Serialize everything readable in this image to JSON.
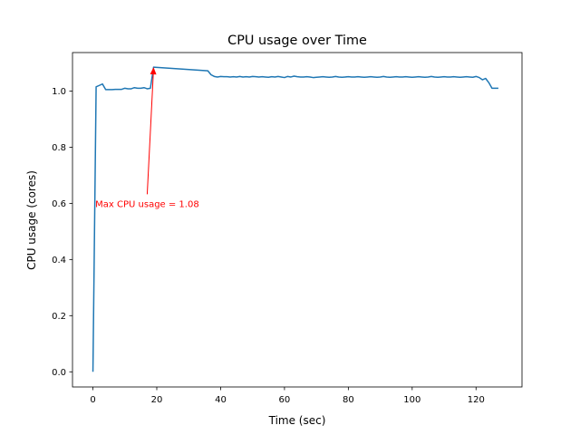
{
  "chart_data": {
    "type": "line",
    "title": "CPU usage over Time",
    "xlabel": "Time (sec)",
    "ylabel": "CPU usage (cores)",
    "xlim": [
      -6.4,
      134.4
    ],
    "ylim": [
      -0.054,
      1.137
    ],
    "xticks": [
      0,
      20,
      40,
      60,
      80,
      100,
      120
    ],
    "yticks": [
      0.0,
      0.2,
      0.4,
      0.6,
      0.8,
      1.0
    ],
    "xtick_labels": [
      "0",
      "20",
      "40",
      "60",
      "80",
      "100",
      "120"
    ],
    "ytick_labels": [
      "0.0",
      "0.2",
      "0.4",
      "0.6",
      "0.8",
      "1.0"
    ],
    "grid": false,
    "series": [
      {
        "color": "#1f77b4",
        "x": [
          0,
          1,
          2,
          3,
          4,
          5,
          6,
          7,
          8,
          9,
          10,
          11,
          12,
          13,
          14,
          15,
          16,
          17,
          18,
          19,
          36,
          37,
          38,
          39,
          40,
          41,
          42,
          43,
          44,
          45,
          46,
          47,
          48,
          49,
          50,
          51,
          52,
          53,
          54,
          55,
          56,
          57,
          58,
          59,
          60,
          61,
          62,
          63,
          64,
          65,
          66,
          67,
          68,
          69,
          70,
          71,
          72,
          73,
          74,
          75,
          76,
          77,
          78,
          79,
          80,
          81,
          82,
          83,
          84,
          85,
          86,
          87,
          88,
          89,
          90,
          91,
          92,
          93,
          94,
          95,
          96,
          97,
          98,
          99,
          100,
          101,
          102,
          103,
          104,
          105,
          106,
          107,
          108,
          109,
          110,
          111,
          112,
          113,
          114,
          115,
          116,
          117,
          118,
          119,
          120,
          121,
          122,
          123,
          124,
          125,
          126,
          127
        ],
        "values": [
          0.0,
          1.015,
          1.02,
          1.025,
          1.005,
          1.005,
          1.005,
          1.006,
          1.006,
          1.006,
          1.01,
          1.008,
          1.008,
          1.012,
          1.01,
          1.01,
          1.012,
          1.008,
          1.01,
          1.085,
          1.072,
          1.058,
          1.052,
          1.05,
          1.052,
          1.051,
          1.051,
          1.05,
          1.051,
          1.05,
          1.052,
          1.05,
          1.051,
          1.05,
          1.052,
          1.051,
          1.05,
          1.051,
          1.05,
          1.049,
          1.051,
          1.05,
          1.052,
          1.05,
          1.048,
          1.052,
          1.05,
          1.053,
          1.051,
          1.05,
          1.05,
          1.051,
          1.05,
          1.048,
          1.049,
          1.05,
          1.051,
          1.05,
          1.049,
          1.05,
          1.052,
          1.05,
          1.049,
          1.05,
          1.051,
          1.05,
          1.05,
          1.051,
          1.05,
          1.049,
          1.05,
          1.051,
          1.05,
          1.049,
          1.05,
          1.052,
          1.05,
          1.049,
          1.05,
          1.051,
          1.05,
          1.05,
          1.051,
          1.05,
          1.049,
          1.05,
          1.051,
          1.05,
          1.049,
          1.05,
          1.052,
          1.05,
          1.049,
          1.05,
          1.051,
          1.05,
          1.05,
          1.051,
          1.05,
          1.049,
          1.05,
          1.051,
          1.05,
          1.049,
          1.052,
          1.048,
          1.04,
          1.045,
          1.03,
          1.01,
          1.01,
          1.01
        ]
      }
    ],
    "annotations": [
      {
        "text": "Max CPU usage = 1.08",
        "color": "#ff0000",
        "xy": [
          19,
          1.085
        ],
        "xytext": [
          17,
          0.6
        ]
      }
    ]
  }
}
